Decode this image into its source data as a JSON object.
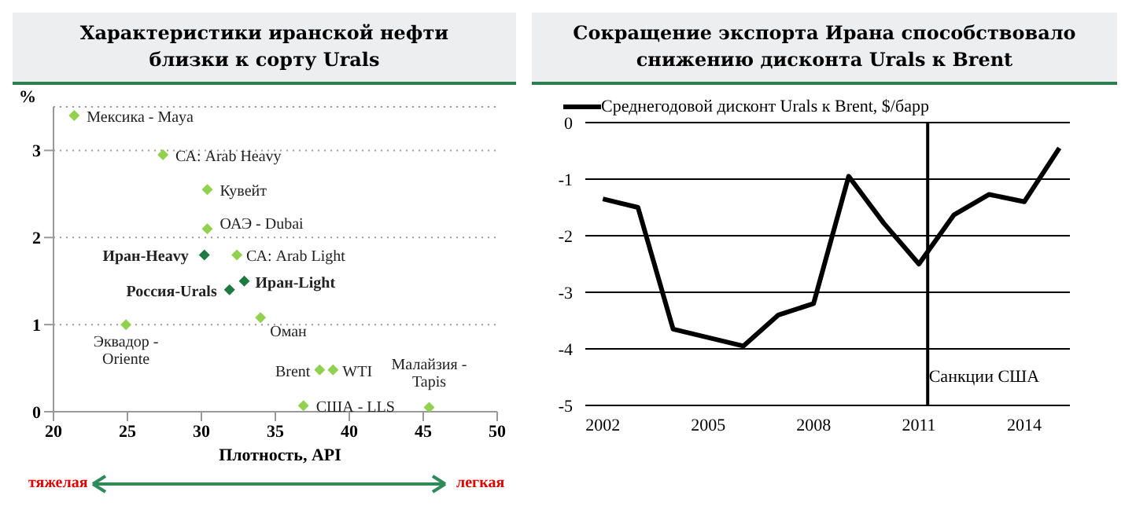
{
  "chart_data": [
    {
      "type": "scatter",
      "title": "Характеристики иранской нефти близки к сорту Urals",
      "xlabel": "Плотность, API",
      "ylabel": "%",
      "xlim": [
        20,
        50
      ],
      "xticks": [
        20,
        25,
        30,
        35,
        40,
        45,
        50
      ],
      "ylim": [
        0,
        3.5
      ],
      "yticks": [
        0,
        1,
        2,
        3
      ],
      "grid": "y",
      "marker": "diamond",
      "series": [
        {
          "color": "#92d050",
          "x": [
            21.4,
            27.4,
            30.4,
            30.4,
            32.4,
            34.0,
            24.9,
            38.0,
            38.9,
            36.9,
            45.4
          ],
          "values": [
            3.4,
            2.95,
            2.55,
            2.1,
            1.8,
            1.08,
            1.0,
            0.48,
            0.48,
            0.07,
            0.05
          ]
        },
        {
          "color": "#1e7a40",
          "x": [
            30.2,
            32.9,
            31.9
          ],
          "values": [
            1.8,
            1.5,
            1.4
          ]
        }
      ],
      "annotations": [
        {
          "text": "Мексика - Maya",
          "x": 21.4,
          "y": 3.4
        },
        {
          "text": "СА: Arab Heavy",
          "x": 27.4,
          "y": 2.95
        },
        {
          "text": "Кувейт",
          "x": 30.4,
          "y": 2.55
        },
        {
          "text": "ОАЭ - Dubai",
          "x": 30.4,
          "y": 2.1
        },
        {
          "text": "СА: Arab Light",
          "x": 32.4,
          "y": 1.8
        },
        {
          "text": "Оман",
          "x": 34.0,
          "y": 1.08
        },
        {
          "text": "Эквадор - Oriente",
          "x": 24.9,
          "y": 1.0
        },
        {
          "text": "Brent",
          "x": 38.0,
          "y": 0.48
        },
        {
          "text": "WTI",
          "x": 38.9,
          "y": 0.48
        },
        {
          "text": "США - LLS",
          "x": 36.9,
          "y": 0.07
        },
        {
          "text": "Малайзия - Tapis",
          "x": 45.4,
          "y": 0.05
        },
        {
          "text": "Иран-Heavy",
          "x": 30.2,
          "y": 1.8
        },
        {
          "text": "Иран-Light",
          "x": 32.9,
          "y": 1.5
        },
        {
          "text": "Россия-Urals",
          "x": 31.9,
          "y": 1.4
        },
        "тяжелая",
        "легкая"
      ]
    },
    {
      "type": "line",
      "title": "Сокращение экспорта Ирана способствовало снижению дисконта Urals к Brent",
      "x": [
        2002,
        2003,
        2004,
        2005,
        2006,
        2007,
        2008,
        2009,
        2010,
        2011,
        2012,
        2013,
        2014,
        2015
      ],
      "xlim": [
        2001.5,
        2015.3
      ],
      "xticks": [
        2002,
        2005,
        2008,
        2011,
        2014
      ],
      "ylim": [
        -5,
        0
      ],
      "yticks": [
        0,
        -1,
        -2,
        -3,
        -4,
        -5
      ],
      "grid": "y",
      "legend": "top",
      "marker": "none",
      "line_style": "solid",
      "series": [
        {
          "name": "Среднегодовой дисконт  Urals к Brent, $/барр",
          "color": "#000000",
          "values": [
            -1.35,
            -1.5,
            -3.65,
            -3.8,
            -3.95,
            -3.4,
            -3.2,
            -0.95,
            -1.78,
            -2.5,
            -1.63,
            -1.27,
            -1.4,
            -0.45
          ]
        }
      ],
      "ref_lines": [
        {
          "axis": "x",
          "value": 2011.25,
          "label": "Санкции США",
          "color": "#000000"
        }
      ]
    }
  ]
}
